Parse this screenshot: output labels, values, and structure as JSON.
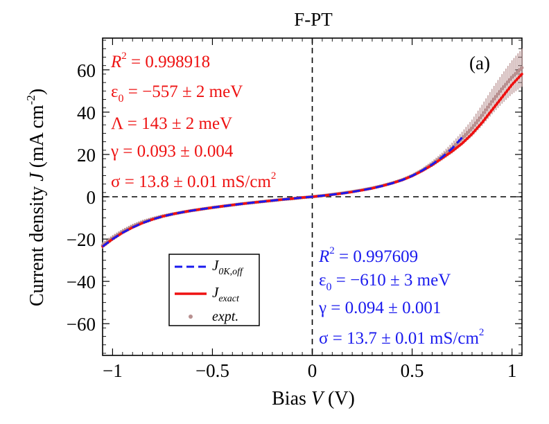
{
  "chart_data": {
    "type": "line",
    "title": "F-PT",
    "panel_label": "(a)",
    "xlabel": {
      "pre": "Bias ",
      "var": "V",
      "post": " (V)"
    },
    "ylabel": {
      "pre": "Current density ",
      "var": "J",
      "post": " (mA cm",
      "sup": "-2",
      "close": ")"
    },
    "xlim": [
      -1.05,
      1.05
    ],
    "ylim": [
      -75,
      75
    ],
    "xticks": [
      -1,
      -0.5,
      0,
      0.5,
      1
    ],
    "xtick_labels": [
      "−1",
      "−0.5",
      "0",
      "0.5",
      "1"
    ],
    "yticks": [
      -60,
      -40,
      -20,
      0,
      20,
      40,
      60
    ],
    "ytick_labels": [
      "−60",
      "−40",
      "−20",
      "0",
      "20",
      "40",
      "60"
    ],
    "grid": false,
    "legend_placement": "lower-left",
    "series": [
      {
        "name": "expt.",
        "label": "expt.",
        "style": "points-with-errorbars",
        "color": "#b89090",
        "x": [
          -1.05,
          -1.0,
          -0.95,
          -0.9,
          -0.85,
          -0.8,
          -0.75,
          -0.7,
          -0.65,
          -0.6,
          -0.55,
          -0.5,
          -0.45,
          -0.4,
          -0.35,
          -0.3,
          -0.25,
          -0.2,
          -0.15,
          -0.1,
          -0.05,
          0.0,
          0.05,
          0.1,
          0.15,
          0.2,
          0.25,
          0.3,
          0.35,
          0.4,
          0.45,
          0.5,
          0.55,
          0.6,
          0.65,
          0.7,
          0.75,
          0.8,
          0.85,
          0.9,
          0.95,
          1.0,
          1.05
        ],
        "y": [
          -23,
          -19.5,
          -16.5,
          -14,
          -12,
          -10.5,
          -9.2,
          -8.2,
          -7.3,
          -6.5,
          -5.8,
          -5.1,
          -4.5,
          -3.9,
          -3.3,
          -2.8,
          -2.3,
          -1.8,
          -1.3,
          -0.9,
          -0.4,
          0,
          0.5,
          1.1,
          1.7,
          2.4,
          3.2,
          4.1,
          5.2,
          6.5,
          8,
          10,
          12.5,
          15.5,
          19,
          23,
          27.5,
          32.5,
          38.5,
          45,
          51,
          56.5,
          61
        ],
        "yerr": [
          1.5,
          1.4,
          1.3,
          1.2,
          1.1,
          1.0,
          0.9,
          0.8,
          0.7,
          0.6,
          0.5,
          0.5,
          0.4,
          0.4,
          0.3,
          0.3,
          0.3,
          0.2,
          0.2,
          0.2,
          0.1,
          0.1,
          0.1,
          0.2,
          0.2,
          0.2,
          0.3,
          0.3,
          0.4,
          0.5,
          0.6,
          0.8,
          1.0,
          1.4,
          1.8,
          2.5,
          3.2,
          4.0,
          5.0,
          6.0,
          7.0,
          8.0,
          9.0
        ]
      },
      {
        "name": "J_exact",
        "label_main": "J",
        "label_sub": "exact",
        "style": "solid",
        "color": "#ee1111",
        "x": [
          -1.05,
          -1.0,
          -0.95,
          -0.9,
          -0.85,
          -0.8,
          -0.75,
          -0.7,
          -0.65,
          -0.6,
          -0.55,
          -0.5,
          -0.45,
          -0.4,
          -0.35,
          -0.3,
          -0.25,
          -0.2,
          -0.15,
          -0.1,
          -0.05,
          0.0,
          0.05,
          0.1,
          0.15,
          0.2,
          0.25,
          0.3,
          0.35,
          0.4,
          0.45,
          0.5,
          0.55,
          0.6,
          0.65,
          0.7,
          0.75,
          0.8,
          0.85,
          0.9,
          0.95,
          1.0,
          1.05
        ],
        "y": [
          -23.5,
          -20,
          -17,
          -14.5,
          -12.4,
          -10.7,
          -9.3,
          -8.2,
          -7.3,
          -6.5,
          -5.8,
          -5.1,
          -4.5,
          -3.9,
          -3.3,
          -2.8,
          -2.3,
          -1.8,
          -1.3,
          -0.9,
          -0.4,
          0,
          0.5,
          1.0,
          1.6,
          2.3,
          3.1,
          4.0,
          5.1,
          6.4,
          7.9,
          9.8,
          12.2,
          15.0,
          18.2,
          21.5,
          25.2,
          29.7,
          35.0,
          41.0,
          47.0,
          53.0,
          58.0
        ]
      },
      {
        "name": "J_0K,off",
        "label_main": "J",
        "label_sub": "0K,off",
        "style": "dashed",
        "color": "#1a1aee",
        "x": [
          -1.05,
          -1.0,
          -0.95,
          -0.9,
          -0.85,
          -0.8,
          -0.75,
          -0.7,
          -0.65,
          -0.6,
          -0.55,
          -0.5,
          -0.45,
          -0.4,
          -0.35,
          -0.3,
          -0.25,
          -0.2,
          -0.15,
          -0.1,
          -0.05,
          0.0,
          0.05,
          0.1,
          0.15,
          0.2,
          0.25,
          0.3,
          0.35,
          0.4,
          0.45,
          0.5,
          0.55,
          0.6,
          0.65,
          0.7,
          0.75
        ],
        "y": [
          -23.5,
          -20,
          -17,
          -14.5,
          -12.4,
          -10.7,
          -9.3,
          -8.2,
          -7.3,
          -6.5,
          -5.8,
          -5.1,
          -4.5,
          -3.9,
          -3.3,
          -2.8,
          -2.3,
          -1.8,
          -1.3,
          -0.9,
          -0.4,
          0,
          0.5,
          1.0,
          1.6,
          2.3,
          3.1,
          4.0,
          5.1,
          6.4,
          7.9,
          9.9,
          12.4,
          15.3,
          18.7,
          22.8,
          28.0
        ]
      }
    ],
    "annotations": {
      "red": {
        "color": "#ee1111",
        "r2_label": "R",
        "r2_sup": "2",
        "r2_value": " = 0.998918",
        "eps_symbol": "ε",
        "eps_sub": "0",
        "eps_value": " = −557 ± 2 meV",
        "lambda": "Λ = 143 ± 2 meV",
        "gamma": "γ = 0.093 ± 0.004",
        "sigma": "σ = 13.8 ± 0.01 mS/cm",
        "sigma_sup": "2"
      },
      "blue": {
        "color": "#1a1aee",
        "r2_label": "R",
        "r2_sup": "2",
        "r2_value": " = 0.997609",
        "eps_symbol": "ε",
        "eps_sub": "0",
        "eps_value": " = −610 ± 3 meV",
        "gamma": "γ = 0.094 ± 0.001",
        "sigma": "σ = 13.7 ± 0.01 mS/cm",
        "sigma_sup": "2"
      }
    }
  }
}
